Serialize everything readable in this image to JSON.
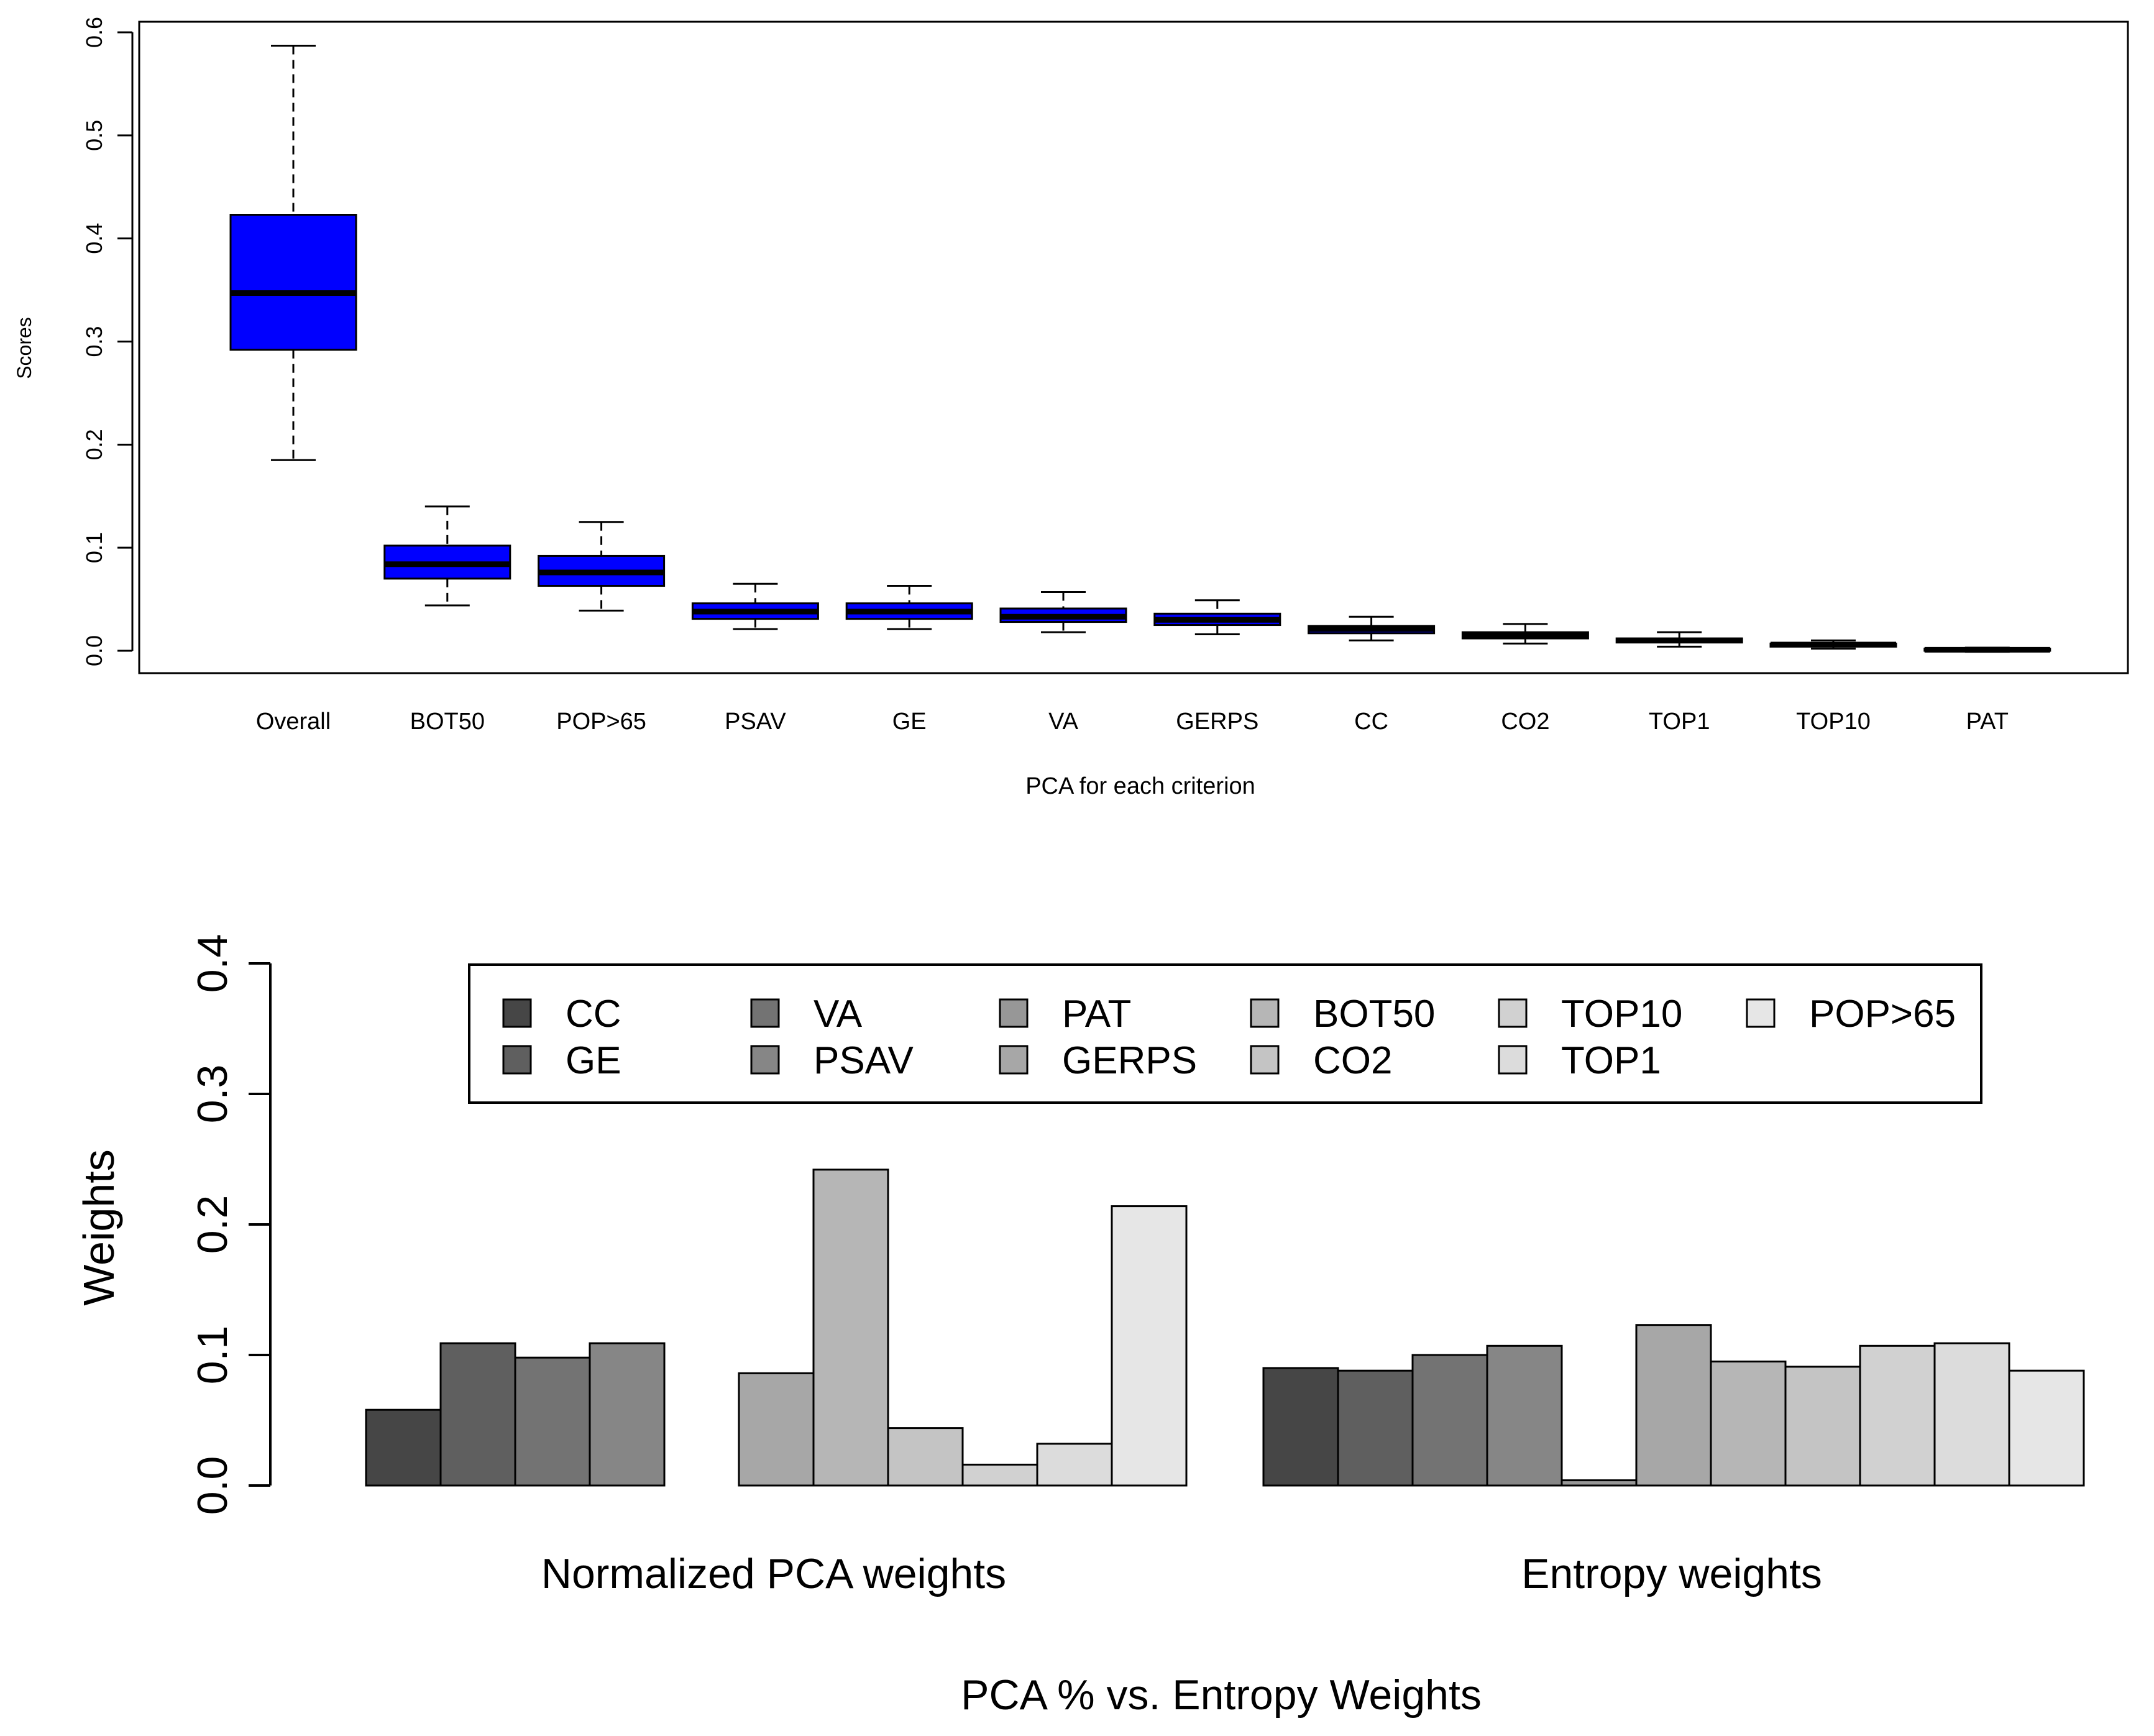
{
  "chart_data": [
    {
      "type": "boxplot",
      "title": "",
      "xlabel": "PCA for each criterion",
      "ylabel": "Scores",
      "ylim": [
        0.0,
        0.6
      ],
      "yticks": [
        "0.0",
        "0.1",
        "0.2",
        "0.3",
        "0.4",
        "0.5",
        "0.6"
      ],
      "box_color": "#0000ff",
      "categories": [
        "Overall",
        "BOT50",
        "POP>65",
        "PSAV",
        "GE",
        "VA",
        "GERPS",
        "CC",
        "CO2",
        "TOP1",
        "TOP10",
        "PAT"
      ],
      "boxes": [
        {
          "min": 0.185,
          "q1": 0.292,
          "median": 0.347,
          "q3": 0.423,
          "max": 0.587
        },
        {
          "min": 0.044,
          "q1": 0.07,
          "median": 0.084,
          "q3": 0.102,
          "max": 0.14
        },
        {
          "min": 0.039,
          "q1": 0.063,
          "median": 0.076,
          "q3": 0.092,
          "max": 0.125
        },
        {
          "min": 0.021,
          "q1": 0.031,
          "median": 0.038,
          "q3": 0.046,
          "max": 0.065
        },
        {
          "min": 0.021,
          "q1": 0.031,
          "median": 0.038,
          "q3": 0.046,
          "max": 0.063
        },
        {
          "min": 0.018,
          "q1": 0.028,
          "median": 0.033,
          "q3": 0.041,
          "max": 0.057
        },
        {
          "min": 0.016,
          "q1": 0.025,
          "median": 0.03,
          "q3": 0.036,
          "max": 0.049
        },
        {
          "min": 0.01,
          "q1": 0.017,
          "median": 0.021,
          "q3": 0.024,
          "max": 0.033
        },
        {
          "min": 0.007,
          "q1": 0.012,
          "median": 0.015,
          "q3": 0.018,
          "max": 0.026
        },
        {
          "min": 0.004,
          "q1": 0.008,
          "median": 0.01,
          "q3": 0.012,
          "max": 0.018
        },
        {
          "min": 0.002,
          "q1": 0.004,
          "median": 0.006,
          "q3": 0.007,
          "max": 0.01
        },
        {
          "min": -0.001,
          "q1": 0.0,
          "median": 0.001,
          "q3": 0.002,
          "max": 0.003
        }
      ]
    },
    {
      "type": "bar",
      "title": "",
      "xlabel": "PCA % vs. Entropy Weights",
      "ylabel": "Weights",
      "ylim": [
        0.0,
        0.4
      ],
      "yticks": [
        "0.0",
        "0.1",
        "0.2",
        "0.3",
        "0.4"
      ],
      "groups": [
        "Normalized PCA weights",
        "Entropy weights"
      ],
      "series": [
        {
          "name": "CC",
          "color": "#464646",
          "values": [
            0.058,
            0.09
          ]
        },
        {
          "name": "GE",
          "color": "#5f5f5f",
          "values": [
            0.109,
            0.088
          ]
        },
        {
          "name": "VA",
          "color": "#737373",
          "values": [
            0.098,
            0.1
          ]
        },
        {
          "name": "PSAV",
          "color": "#868686",
          "values": [
            0.109,
            0.107
          ]
        },
        {
          "name": "PAT",
          "color": "#979797",
          "values": [
            0.0,
            0.004
          ]
        },
        {
          "name": "GERPS",
          "color": "#a7a7a7",
          "values": [
            0.086,
            0.123
          ]
        },
        {
          "name": "BOT50",
          "color": "#b6b6b6",
          "values": [
            0.242,
            0.095
          ]
        },
        {
          "name": "CO2",
          "color": "#c4c4c4",
          "values": [
            0.044,
            0.091
          ]
        },
        {
          "name": "TOP10",
          "color": "#d1d1d1",
          "values": [
            0.016,
            0.107
          ]
        },
        {
          "name": "TOP1",
          "color": "#dcdcdc",
          "values": [
            0.032,
            0.109
          ]
        },
        {
          "name": "POP>65",
          "color": "#e6e6e6",
          "values": [
            0.214,
            0.088
          ]
        }
      ]
    }
  ]
}
